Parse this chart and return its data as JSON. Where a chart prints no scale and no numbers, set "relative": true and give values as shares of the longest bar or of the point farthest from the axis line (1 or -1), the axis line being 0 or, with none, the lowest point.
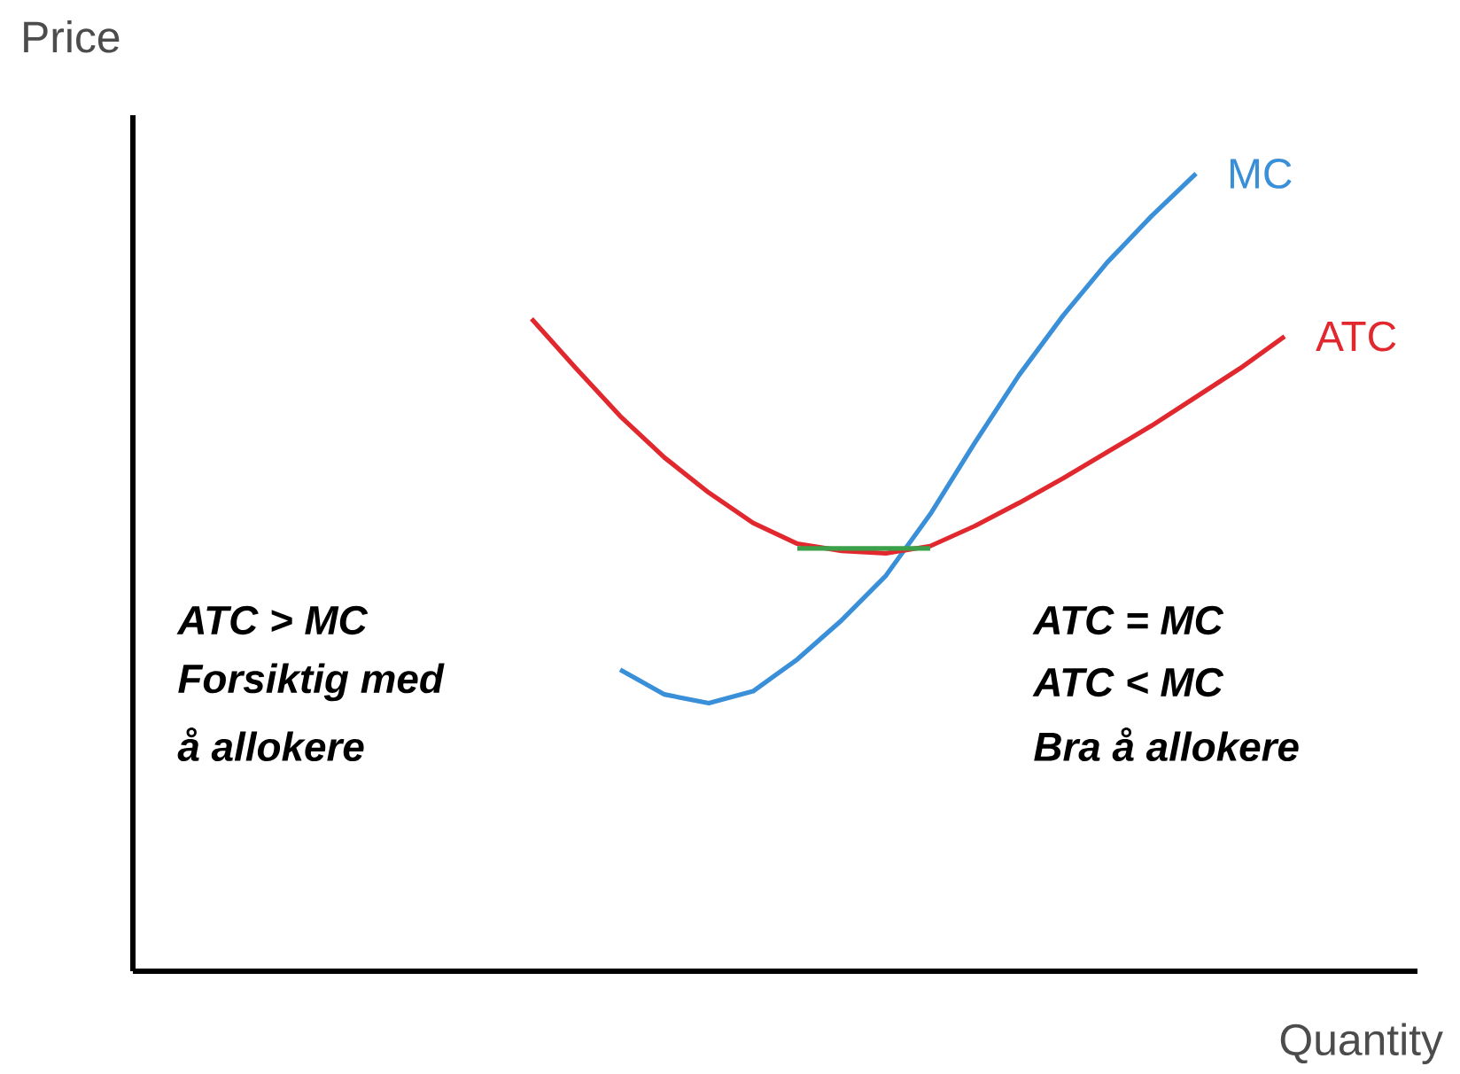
{
  "chart_data": {
    "type": "line",
    "relative": true,
    "xlabel": "Quantity",
    "ylabel": "Price",
    "categories": [
      null,
      null,
      null,
      null,
      null,
      null,
      null,
      null,
      null,
      null,
      null,
      null,
      null,
      null,
      null,
      null,
      null,
      null,
      null,
      null,
      null,
      null,
      null,
      null,
      null,
      null,
      null,
      null,
      null,
      null
    ],
    "series": [
      {
        "name": "MC",
        "color": "#3a8fd9",
        "values": [
          null,
          null,
          null,
          null,
          null,
          null,
          null,
          null,
          null,
          null,
          null,
          0.378,
          0.347,
          0.336,
          0.351,
          0.391,
          0.44,
          0.496,
          0.573,
          0.662,
          0.747,
          0.822,
          0.889,
          0.947,
          1.0,
          null,
          null,
          null,
          null,
          null
        ]
      },
      {
        "name": "ATC",
        "color": "#e0282e",
        "values": [
          null,
          null,
          null,
          null,
          null,
          null,
          null,
          null,
          null,
          0.818,
          0.756,
          0.696,
          0.644,
          0.6,
          0.562,
          0.536,
          0.527,
          0.524,
          0.533,
          0.558,
          0.587,
          0.618,
          0.651,
          0.684,
          0.72,
          0.756,
          0.796,
          null,
          null,
          null
        ]
      },
      {
        "color": "#3aa04a",
        "values": [
          null,
          null,
          null,
          null,
          null,
          null,
          null,
          null,
          null,
          null,
          null,
          null,
          null,
          null,
          null,
          0.53,
          0.53,
          0.53,
          0.53,
          null,
          null,
          null,
          null,
          null,
          null,
          null,
          null,
          null,
          null,
          null
        ]
      }
    ],
    "annotations": [
      "ATC > MC",
      "Forsiktig med",
      "å allokere",
      "ATC = MC",
      "ATC < MC",
      "Bra å allokere"
    ]
  }
}
